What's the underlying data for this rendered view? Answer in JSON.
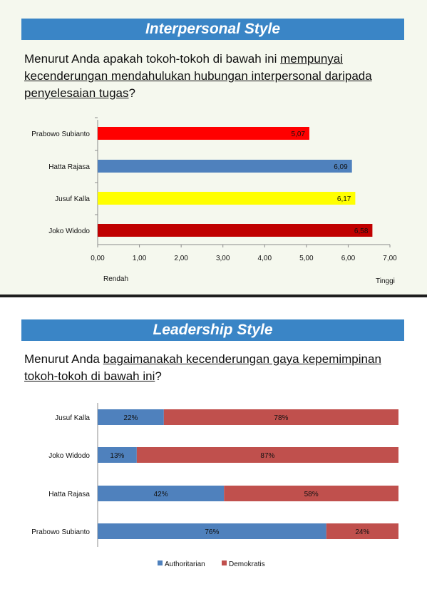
{
  "interpersonal": {
    "title": "Interpersonal Style",
    "question_plain": "Menurut Anda apakah tokoh-tokoh di bawah ini ",
    "question_underlined": "mempunyai kecenderungan mendahulukan hubungan interpersonal daripada penyelesaian tugas",
    "question_end": "?"
  },
  "leadership": {
    "title": "Leadership Style",
    "question_plain": "Menurut Anda ",
    "question_underlined": "bagaimanakah kecenderungan gaya kepemimpinan tokoh-tokoh di bawah ini",
    "question_end": "?"
  },
  "chart_data": [
    {
      "type": "bar",
      "orientation": "horizontal",
      "categories": [
        "Prabowo Subianto",
        "Hatta Rajasa",
        "Jusuf Kalla",
        "Joko Widodo"
      ],
      "values": [
        5.07,
        6.09,
        6.17,
        6.58
      ],
      "value_labels": [
        "5,07",
        "6,09",
        "6,17",
        "6,58"
      ],
      "bar_colors": [
        "#ff0000",
        "#4f81bd",
        "#ffff00",
        "#c00000"
      ],
      "xlim": [
        0,
        7
      ],
      "x_ticks": [
        0,
        1,
        2,
        3,
        4,
        5,
        6,
        7
      ],
      "x_tick_labels": [
        "0,00",
        "1,00",
        "2,00",
        "3,00",
        "4,00",
        "5,00",
        "6,00",
        "7,00"
      ],
      "low_label": "Rendah",
      "high_label": "Tinggi",
      "grid": false
    },
    {
      "type": "bar",
      "orientation": "horizontal",
      "stacked": "percent",
      "categories": [
        "Jusuf Kalla",
        "Joko Widodo",
        "Hatta Rajasa",
        "Prabowo Subianto"
      ],
      "series": [
        {
          "name": "Authoritarian",
          "color": "#4f81bd",
          "values": [
            22,
            13,
            42,
            76
          ],
          "labels": [
            "22%",
            "13%",
            "42%",
            "76%"
          ]
        },
        {
          "name": "Demokratis",
          "color": "#c0504d",
          "values": [
            78,
            87,
            58,
            24
          ],
          "labels": [
            "78%",
            "87%",
            "58%",
            "24%"
          ]
        }
      ],
      "legend": "bottom",
      "grid": false
    }
  ]
}
